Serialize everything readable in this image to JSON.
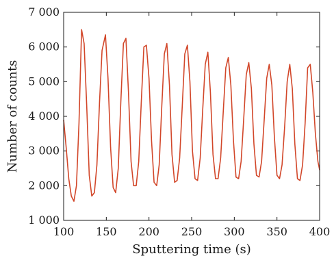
{
  "chart_data": {
    "type": "line",
    "title": "",
    "xlabel": "Sputtering time (s)",
    "ylabel": "Number of counts",
    "xlim": [
      100,
      400
    ],
    "ylim": [
      1000,
      7000
    ],
    "xticks": [
      100,
      150,
      200,
      250,
      300,
      350,
      400
    ],
    "xtick_labels": [
      "100",
      "150",
      "200",
      "250",
      "300",
      "350",
      "400"
    ],
    "yticks": [
      1000,
      2000,
      3000,
      4000,
      5000,
      6000,
      7000
    ],
    "ytick_labels": [
      "1 000",
      "2 000",
      "3 000",
      "4 000",
      "5 000",
      "6 000",
      "7 000"
    ],
    "grid": false,
    "legend": "none",
    "line_color": "#d2472a",
    "series": [
      {
        "x": [
          100,
          103,
          106,
          109,
          112,
          115,
          118,
          121,
          124,
          127,
          130,
          133,
          136,
          139,
          142,
          145,
          149,
          152,
          155,
          158,
          161,
          164,
          167,
          170,
          173,
          176,
          179,
          182,
          185,
          188,
          191,
          194,
          197,
          200,
          203,
          206,
          209,
          212,
          215,
          218,
          221,
          224,
          227,
          230,
          233,
          236,
          239,
          242,
          245,
          248,
          251,
          254,
          257,
          260,
          263,
          266,
          269,
          272,
          275,
          278,
          281,
          284,
          287,
          290,
          293,
          296,
          299,
          302,
          305,
          308,
          311,
          314,
          317,
          320,
          323,
          326,
          329,
          332,
          335,
          338,
          341,
          344,
          347,
          350,
          353,
          356,
          359,
          362,
          365,
          368,
          371,
          374,
          377,
          380,
          383,
          386,
          389,
          392,
          395,
          398,
          400
        ],
        "y": [
          3900,
          3100,
          2200,
          1700,
          1550,
          2000,
          3800,
          6500,
          6100,
          4300,
          2300,
          1700,
          1800,
          2600,
          4400,
          5900,
          6350,
          5100,
          3100,
          1950,
          1800,
          2500,
          4400,
          6100,
          6250,
          4700,
          2700,
          2000,
          2000,
          2700,
          4400,
          6000,
          6050,
          5100,
          3300,
          2100,
          2000,
          2600,
          4300,
          5800,
          6100,
          4900,
          2900,
          2100,
          2150,
          2800,
          4300,
          5800,
          6050,
          5000,
          3000,
          2200,
          2150,
          2800,
          4200,
          5500,
          5850,
          4700,
          2900,
          2200,
          2200,
          2800,
          4100,
          5400,
          5700,
          4900,
          3300,
          2250,
          2200,
          2700,
          3900,
          5200,
          5550,
          4800,
          3200,
          2300,
          2250,
          2700,
          3900,
          5100,
          5500,
          4900,
          3400,
          2300,
          2200,
          2600,
          3700,
          5000,
          5500,
          4800,
          3200,
          2200,
          2150,
          2600,
          3800,
          5400,
          5500,
          4700,
          3500,
          2700,
          2450
        ]
      }
    ]
  }
}
